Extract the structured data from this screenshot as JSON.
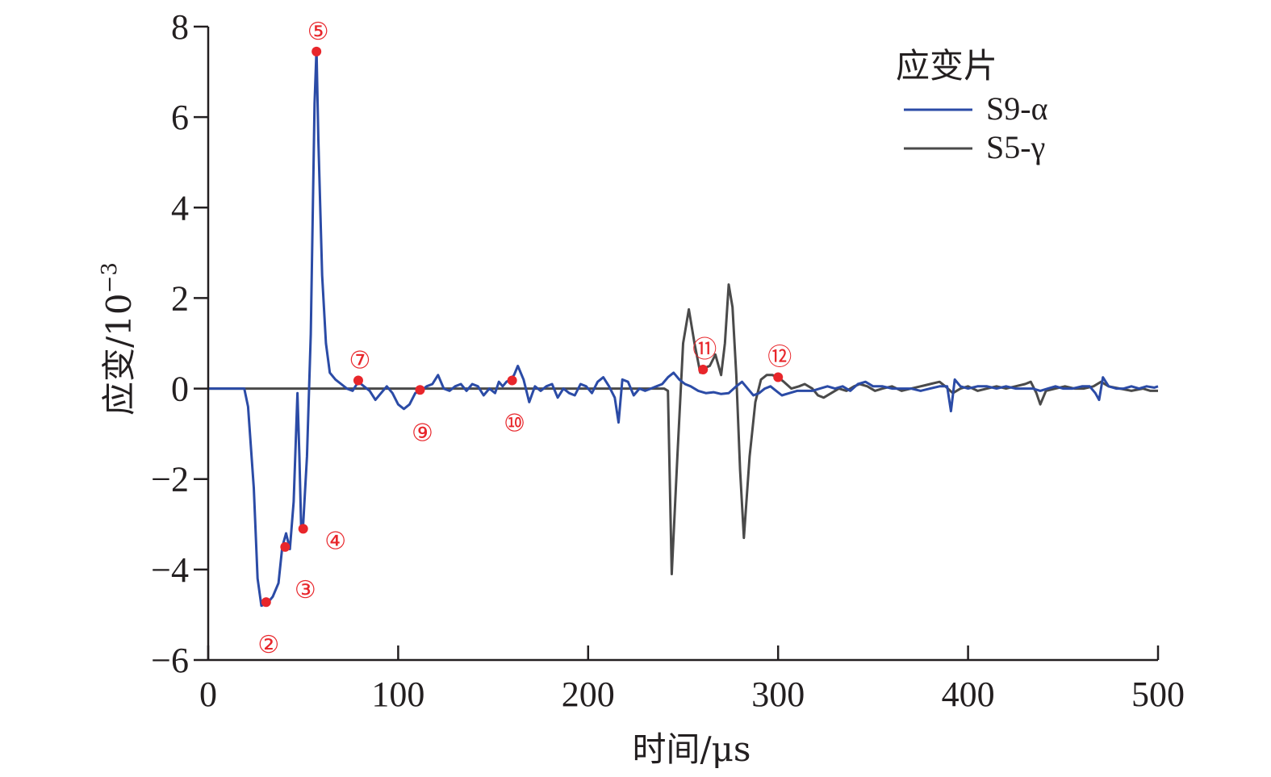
{
  "chart_data": {
    "type": "line",
    "title": "",
    "xlabel": "时间/μs",
    "ylabel": "应变/10",
    "ylabel_exp": "−3",
    "xlim": [
      0,
      500
    ],
    "ylim": [
      -6,
      8
    ],
    "xticks": [
      0,
      100,
      200,
      300,
      400,
      500
    ],
    "xtick_labels": [
      "0",
      "100",
      "200",
      "300",
      "400",
      "500"
    ],
    "yticks": [
      -6,
      -4,
      -2,
      0,
      2,
      4,
      6,
      8
    ],
    "ytick_labels": [
      "−6",
      "−4",
      "−2",
      "0",
      "2",
      "4",
      "6",
      "8"
    ],
    "grid": false,
    "legend": {
      "title": "应变片",
      "position": "top-right",
      "entries": [
        "S9-α",
        "S5-γ"
      ]
    },
    "series": [
      {
        "name": "S5-γ",
        "color": "#4a4a4a",
        "points": [
          [
            0,
            0
          ],
          [
            240,
            0
          ],
          [
            242,
            -0.05
          ],
          [
            244,
            -4.1
          ],
          [
            247,
            -1.5
          ],
          [
            250,
            1.0
          ],
          [
            253,
            1.75
          ],
          [
            256,
            1.0
          ],
          [
            259,
            0.35
          ],
          [
            261,
            0.45
          ],
          [
            264,
            0.5
          ],
          [
            267,
            0.75
          ],
          [
            270,
            0.3
          ],
          [
            272,
            1.0
          ],
          [
            274,
            2.3
          ],
          [
            276,
            1.8
          ],
          [
            278,
            0.3
          ],
          [
            280,
            -1.8
          ],
          [
            282,
            -3.3
          ],
          [
            285,
            -1.5
          ],
          [
            288,
            -0.3
          ],
          [
            291,
            0.2
          ],
          [
            294,
            0.3
          ],
          [
            297,
            0.3
          ],
          [
            300,
            0.25
          ],
          [
            303,
            0.15
          ],
          [
            307,
            0.0
          ],
          [
            311,
            0.05
          ],
          [
            314,
            0.1
          ],
          [
            318,
            0.0
          ],
          [
            321,
            -0.15
          ],
          [
            324,
            -0.2
          ],
          [
            328,
            -0.1
          ],
          [
            332,
            0.0
          ],
          [
            336,
            -0.05
          ],
          [
            340,
            0.05
          ],
          [
            343,
            0.1
          ],
          [
            347,
            0.05
          ],
          [
            351,
            -0.05
          ],
          [
            355,
            0.0
          ],
          [
            360,
            0.05
          ],
          [
            365,
            -0.05
          ],
          [
            370,
            0.0
          ],
          [
            375,
            0.05
          ],
          [
            380,
            0.1
          ],
          [
            385,
            0.15
          ],
          [
            388,
            0.05
          ],
          [
            392,
            -0.1
          ],
          [
            396,
            0.0
          ],
          [
            400,
            0.05
          ],
          [
            405,
            -0.05
          ],
          [
            410,
            0.0
          ],
          [
            415,
            0.05
          ],
          [
            420,
            0.0
          ],
          [
            425,
            0.05
          ],
          [
            430,
            0.1
          ],
          [
            433,
            0.15
          ],
          [
            436,
            -0.1
          ],
          [
            438,
            -0.35
          ],
          [
            441,
            -0.05
          ],
          [
            446,
            0.0
          ],
          [
            451,
            0.05
          ],
          [
            456,
            0.0
          ],
          [
            461,
            0.0
          ],
          [
            466,
            0.05
          ],
          [
            470,
            0.15
          ],
          [
            474,
            0.05
          ],
          [
            480,
            0.0
          ],
          [
            486,
            -0.05
          ],
          [
            492,
            0.0
          ],
          [
            496,
            -0.05
          ],
          [
            500,
            -0.05
          ]
        ]
      },
      {
        "name": "S9-α",
        "color": "#2b4ba6",
        "points": [
          [
            0,
            0
          ],
          [
            19,
            0
          ],
          [
            21,
            -0.4
          ],
          [
            24,
            -2.2
          ],
          [
            26,
            -4.2
          ],
          [
            28,
            -4.8
          ],
          [
            31,
            -4.75
          ],
          [
            34,
            -4.6
          ],
          [
            37,
            -4.3
          ],
          [
            39,
            -3.5
          ],
          [
            41,
            -3.2
          ],
          [
            43,
            -3.55
          ],
          [
            45,
            -2.5
          ],
          [
            47,
            -0.1
          ],
          [
            48,
            -1.5
          ],
          [
            49,
            -3.15
          ],
          [
            50,
            -3.0
          ],
          [
            52,
            -1.5
          ],
          [
            54,
            1.2
          ],
          [
            56,
            6.3
          ],
          [
            57,
            7.5
          ],
          [
            58,
            5.5
          ],
          [
            60,
            2.5
          ],
          [
            62,
            1.0
          ],
          [
            64,
            0.35
          ],
          [
            67,
            0.2
          ],
          [
            70,
            0.1
          ],
          [
            73,
            0.0
          ],
          [
            76,
            -0.05
          ],
          [
            79,
            0.15
          ],
          [
            82,
            0.05
          ],
          [
            85,
            -0.05
          ],
          [
            88,
            -0.25
          ],
          [
            91,
            -0.1
          ],
          [
            94,
            0.05
          ],
          [
            97,
            -0.1
          ],
          [
            100,
            -0.35
          ],
          [
            103,
            -0.45
          ],
          [
            106,
            -0.35
          ],
          [
            109,
            -0.1
          ],
          [
            112,
            -0.05
          ],
          [
            115,
            0.05
          ],
          [
            118,
            0.1
          ],
          [
            121,
            0.3
          ],
          [
            124,
            0.0
          ],
          [
            127,
            -0.05
          ],
          [
            130,
            0.05
          ],
          [
            133,
            0.1
          ],
          [
            136,
            -0.05
          ],
          [
            139,
            0.1
          ],
          [
            142,
            0.05
          ],
          [
            145,
            -0.15
          ],
          [
            148,
            0.0
          ],
          [
            151,
            -0.1
          ],
          [
            153,
            0.15
          ],
          [
            155,
            0.05
          ],
          [
            157,
            0.15
          ],
          [
            159,
            0.2
          ],
          [
            161,
            0.3
          ],
          [
            163,
            0.5
          ],
          [
            166,
            0.2
          ],
          [
            169,
            -0.3
          ],
          [
            172,
            0.05
          ],
          [
            175,
            -0.05
          ],
          [
            178,
            0.05
          ],
          [
            181,
            0.1
          ],
          [
            184,
            -0.2
          ],
          [
            187,
            0.0
          ],
          [
            190,
            -0.1
          ],
          [
            193,
            -0.15
          ],
          [
            196,
            0.1
          ],
          [
            199,
            0.05
          ],
          [
            202,
            -0.1
          ],
          [
            205,
            0.15
          ],
          [
            208,
            0.25
          ],
          [
            211,
            0.05
          ],
          [
            214,
            -0.2
          ],
          [
            216,
            -0.75
          ],
          [
            218,
            0.2
          ],
          [
            221,
            0.15
          ],
          [
            224,
            -0.15
          ],
          [
            227,
            0.0
          ],
          [
            230,
            -0.05
          ],
          [
            233,
            0.0
          ],
          [
            236,
            0.05
          ],
          [
            239,
            0.1
          ],
          [
            242,
            0.25
          ],
          [
            245,
            0.35
          ],
          [
            248,
            0.2
          ],
          [
            251,
            0.1
          ],
          [
            254,
            0.05
          ],
          [
            258,
            -0.05
          ],
          [
            262,
            -0.1
          ],
          [
            266,
            -0.08
          ],
          [
            270,
            -0.12
          ],
          [
            274,
            -0.1
          ],
          [
            278,
            0.05
          ],
          [
            281,
            0.15
          ],
          [
            284,
            0.0
          ],
          [
            287,
            -0.15
          ],
          [
            290,
            -0.1
          ],
          [
            293,
            0.0
          ],
          [
            296,
            0.05
          ],
          [
            299,
            -0.05
          ],
          [
            302,
            -0.15
          ],
          [
            306,
            -0.1
          ],
          [
            310,
            -0.05
          ],
          [
            314,
            -0.05
          ],
          [
            318,
            -0.05
          ],
          [
            322,
            0.0
          ],
          [
            326,
            0.05
          ],
          [
            330,
            0.0
          ],
          [
            334,
            0.05
          ],
          [
            338,
            -0.05
          ],
          [
            342,
            0.1
          ],
          [
            346,
            0.15
          ],
          [
            350,
            0.05
          ],
          [
            355,
            0.05
          ],
          [
            360,
            0.0
          ],
          [
            365,
            0.0
          ],
          [
            370,
            0.0
          ],
          [
            375,
            -0.05
          ],
          [
            380,
            0.0
          ],
          [
            385,
            0.05
          ],
          [
            389,
            0.05
          ],
          [
            391,
            -0.5
          ],
          [
            393,
            0.2
          ],
          [
            396,
            0.05
          ],
          [
            400,
            0.0
          ],
          [
            405,
            0.05
          ],
          [
            410,
            0.05
          ],
          [
            415,
            0.0
          ],
          [
            420,
            0.05
          ],
          [
            425,
            0.0
          ],
          [
            430,
            0.0
          ],
          [
            434,
            0.0
          ],
          [
            438,
            -0.05
          ],
          [
            442,
            0.0
          ],
          [
            446,
            0.05
          ],
          [
            450,
            0.0
          ],
          [
            455,
            0.0
          ],
          [
            460,
            0.05
          ],
          [
            464,
            0.05
          ],
          [
            467,
            -0.1
          ],
          [
            469,
            -0.25
          ],
          [
            471,
            0.25
          ],
          [
            474,
            0.05
          ],
          [
            478,
            0.0
          ],
          [
            482,
            0.0
          ],
          [
            486,
            0.05
          ],
          [
            490,
            0.0
          ],
          [
            494,
            0.05
          ],
          [
            498,
            0.02
          ],
          [
            500,
            0.05
          ]
        ]
      }
    ],
    "markers": [
      {
        "label": "②",
        "x": 30.5,
        "y": -4.72,
        "label_pos": "below"
      },
      {
        "label": "③",
        "x": 40.5,
        "y": -3.5,
        "label_pos": "below-right"
      },
      {
        "label": "④",
        "x": 50,
        "y": -3.1,
        "label_pos": "right"
      },
      {
        "label": "⑤",
        "x": 57,
        "y": 7.45,
        "label_pos": "above"
      },
      {
        "label": "⑦",
        "x": 79,
        "y": 0.18,
        "label_pos": "above"
      },
      {
        "label": "⑨",
        "x": 111.5,
        "y": -0.03,
        "label_pos": "below"
      },
      {
        "label": "⑩",
        "x": 160,
        "y": 0.18,
        "label_pos": "below"
      },
      {
        "label": "⑪",
        "x": 260.5,
        "y": 0.42,
        "label_pos": "above"
      },
      {
        "label": "⑫",
        "x": 300,
        "y": 0.25,
        "label_pos": "above"
      }
    ],
    "marker_color": "#e8262b"
  }
}
